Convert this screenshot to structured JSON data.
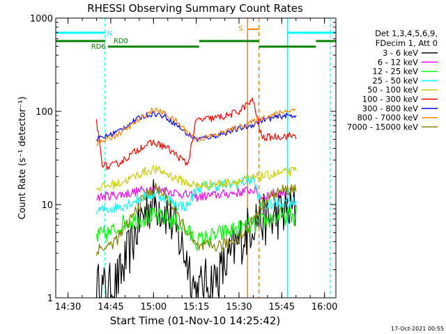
{
  "chart_data": {
    "type": "line",
    "title": "RHESSI Observing Summary Count Rates",
    "xlabel": "Start Time (01-Nov-10 14:25:42)",
    "ylabel": "Count Rate (s⁻¹ detector⁻¹)",
    "y_scale": "log",
    "ylim": [
      1,
      1000
    ],
    "xlim": [
      "14:25:42",
      "16:04"
    ],
    "x_ticks": [
      "14:30",
      "14:45",
      "15:00",
      "15:15",
      "15:30",
      "15:45",
      "16:00"
    ],
    "y_ticks": [
      "1",
      "10",
      "100",
      "1000"
    ],
    "legend_header": [
      "Det 1,3,4,5,6,9,",
      "FDecim 1, Att 0"
    ],
    "legend_placement": "right",
    "data_gaps": [
      [
        "14:25:42",
        "14:40"
      ],
      [
        "14:47",
        "14:53"
      ],
      [
        "15:42",
        "16:04"
      ]
    ],
    "series": [
      {
        "name": "3 - 6 keV",
        "color": "#000000",
        "x": [
          "14:40",
          "14:44",
          "14:48",
          "14:52",
          "14:55",
          "14:58",
          "15:00",
          "15:02",
          "15:05",
          "15:08",
          "15:12",
          "15:15",
          "15:18",
          "15:22",
          "15:26",
          "15:28",
          "15:30",
          "15:33",
          "15:36",
          "15:38",
          "15:41",
          "15:44",
          "15:47",
          "15:50"
        ],
        "values": [
          1.3,
          1.2,
          1.6,
          3.5,
          6.5,
          9.5,
          10.5,
          10,
          8,
          5,
          2.5,
          1.1,
          1.4,
          1.6,
          2.4,
          3.2,
          4,
          5.2,
          7.5,
          7,
          6.5,
          8,
          8.5,
          9
        ]
      },
      {
        "name": "6 - 12 keV",
        "color": "#ff00ff",
        "x": [
          "14:40",
          "14:45",
          "14:50",
          "14:55",
          "15:00",
          "15:05",
          "15:10",
          "15:15",
          "15:20",
          "15:25",
          "15:30",
          "15:35",
          "15:38",
          "15:41",
          "15:45",
          "15:50"
        ],
        "values": [
          12,
          12.5,
          13,
          14,
          15,
          14,
          13,
          12,
          12.5,
          13,
          13.5,
          14.5,
          12,
          13,
          13.5,
          14
        ]
      },
      {
        "name": "12 - 25 keV",
        "color": "#00ff00",
        "x": [
          "14:40",
          "14:45",
          "14:50",
          "14:55",
          "15:00",
          "15:05",
          "15:10",
          "15:15",
          "15:20",
          "15:25",
          "15:30",
          "15:35",
          "15:38",
          "15:41",
          "15:45",
          "15:50"
        ],
        "values": [
          4.5,
          5,
          6.5,
          7,
          7.5,
          7,
          6,
          4,
          4.5,
          5,
          5.5,
          6,
          6.5,
          7,
          7.5,
          7.5
        ]
      },
      {
        "name": "25 - 50 keV",
        "color": "#00ffff",
        "x": [
          "14:40",
          "14:44",
          "14:48",
          "14:52",
          "14:56",
          "15:00",
          "15:04",
          "15:08",
          "15:12",
          "15:15",
          "15:18",
          "15:22",
          "15:26",
          "15:30",
          "15:33",
          "15:35",
          "15:38",
          "15:41",
          "15:45",
          "15:50"
        ],
        "values": [
          8.5,
          9,
          9.5,
          10.5,
          12,
          13,
          12,
          10,
          9.5,
          15,
          15.5,
          16,
          16.5,
          17,
          18,
          19,
          9.5,
          10,
          10.5,
          11
        ]
      },
      {
        "name": "50 - 100 keV",
        "color": "#cccc00",
        "x": [
          "14:40",
          "14:44",
          "14:48",
          "14:52",
          "14:56",
          "15:00",
          "15:04",
          "15:08",
          "15:12",
          "15:15",
          "15:20",
          "15:25",
          "15:30",
          "15:34",
          "15:38",
          "15:42",
          "15:46",
          "15:50"
        ],
        "values": [
          15,
          16,
          17,
          19,
          22,
          24,
          22,
          19,
          17,
          16,
          16.5,
          17,
          18,
          19,
          20,
          21,
          22,
          23
        ]
      },
      {
        "name": "100 - 300 keV",
        "color": "#ff0000",
        "x": [
          "14:40",
          "14:42",
          "14:44",
          "14:48",
          "14:52",
          "14:56",
          "15:00",
          "15:04",
          "15:08",
          "15:12",
          "15:15",
          "15:18",
          "15:22",
          "15:26",
          "15:30",
          "15:33",
          "15:35",
          "15:38",
          "15:41",
          "15:45",
          "15:50"
        ],
        "values": [
          80,
          28,
          25,
          28,
          34,
          42,
          46,
          42,
          34,
          27,
          80,
          82,
          85,
          90,
          100,
          120,
          130,
          52,
          53,
          54,
          55
        ]
      },
      {
        "name": "300 - 800 keV",
        "color": "#0000ff",
        "x": [
          "14:40",
          "14:44",
          "14:48",
          "14:52",
          "14:56",
          "15:00",
          "15:04",
          "15:08",
          "15:12",
          "15:15",
          "15:18",
          "15:22",
          "15:26",
          "15:30",
          "15:34",
          "15:38",
          "15:42",
          "15:46",
          "15:50"
        ],
        "values": [
          50,
          55,
          62,
          75,
          88,
          95,
          88,
          72,
          57,
          50,
          52,
          55,
          60,
          65,
          70,
          80,
          85,
          90,
          90
        ]
      },
      {
        "name": "800 - 7000 keV",
        "color": "#ff8000",
        "x": [
          "14:40",
          "14:44",
          "14:48",
          "14:52",
          "14:56",
          "15:00",
          "15:04",
          "15:08",
          "15:12",
          "15:15",
          "15:18",
          "15:22",
          "15:26",
          "15:30",
          "15:34",
          "15:38",
          "15:42",
          "15:46",
          "15:50"
        ],
        "values": [
          45,
          50,
          58,
          70,
          85,
          105,
          95,
          78,
          60,
          50,
          52,
          56,
          62,
          68,
          75,
          85,
          92,
          100,
          105
        ]
      },
      {
        "name": "7000 - 15000 keV",
        "color": "#808000",
        "x": [
          "14:40",
          "14:44",
          "14:48",
          "14:52",
          "14:56",
          "15:00",
          "15:04",
          "15:08",
          "15:12",
          "15:15",
          "15:18",
          "15:22",
          "15:26",
          "15:30",
          "15:33",
          "15:35",
          "15:38",
          "15:41",
          "15:45",
          "15:50"
        ],
        "values": [
          3.3,
          3.5,
          4.5,
          7,
          11,
          15,
          13,
          8,
          5,
          3.5,
          3.5,
          3.6,
          3.8,
          4.5,
          5.5,
          7,
          10,
          12,
          14,
          15
        ]
      }
    ],
    "annotations": {
      "night": {
        "label": "N",
        "color": "#00ffff",
        "intervals": [
          [
            "14:25:42",
            "14:43"
          ],
          [
            "15:47",
            "16:04"
          ]
        ],
        "edge_lines": [
          "14:43",
          "15:47",
          "16:02"
        ]
      },
      "saa": {
        "label": "S",
        "color": "#ff8000",
        "intervals": [
          [
            "15:33",
            "15:37"
          ]
        ],
        "edge_lines": [
          "15:33",
          "15:37"
        ]
      },
      "rd0": {
        "label": "RD0",
        "color": "#008000",
        "intervals": [
          [
            "14:44",
            "15:16"
          ],
          [
            "15:16",
            "15:37"
          ],
          [
            "15:37",
            "15:57"
          ],
          [
            "15:57",
            "16:04"
          ]
        ]
      },
      "rd6": {
        "label": "RD6",
        "color": "#008000",
        "intervals": [
          [
            "14:25:42",
            "14:43"
          ]
        ]
      }
    },
    "footer_date": "17-Oct-2021 00:55"
  }
}
